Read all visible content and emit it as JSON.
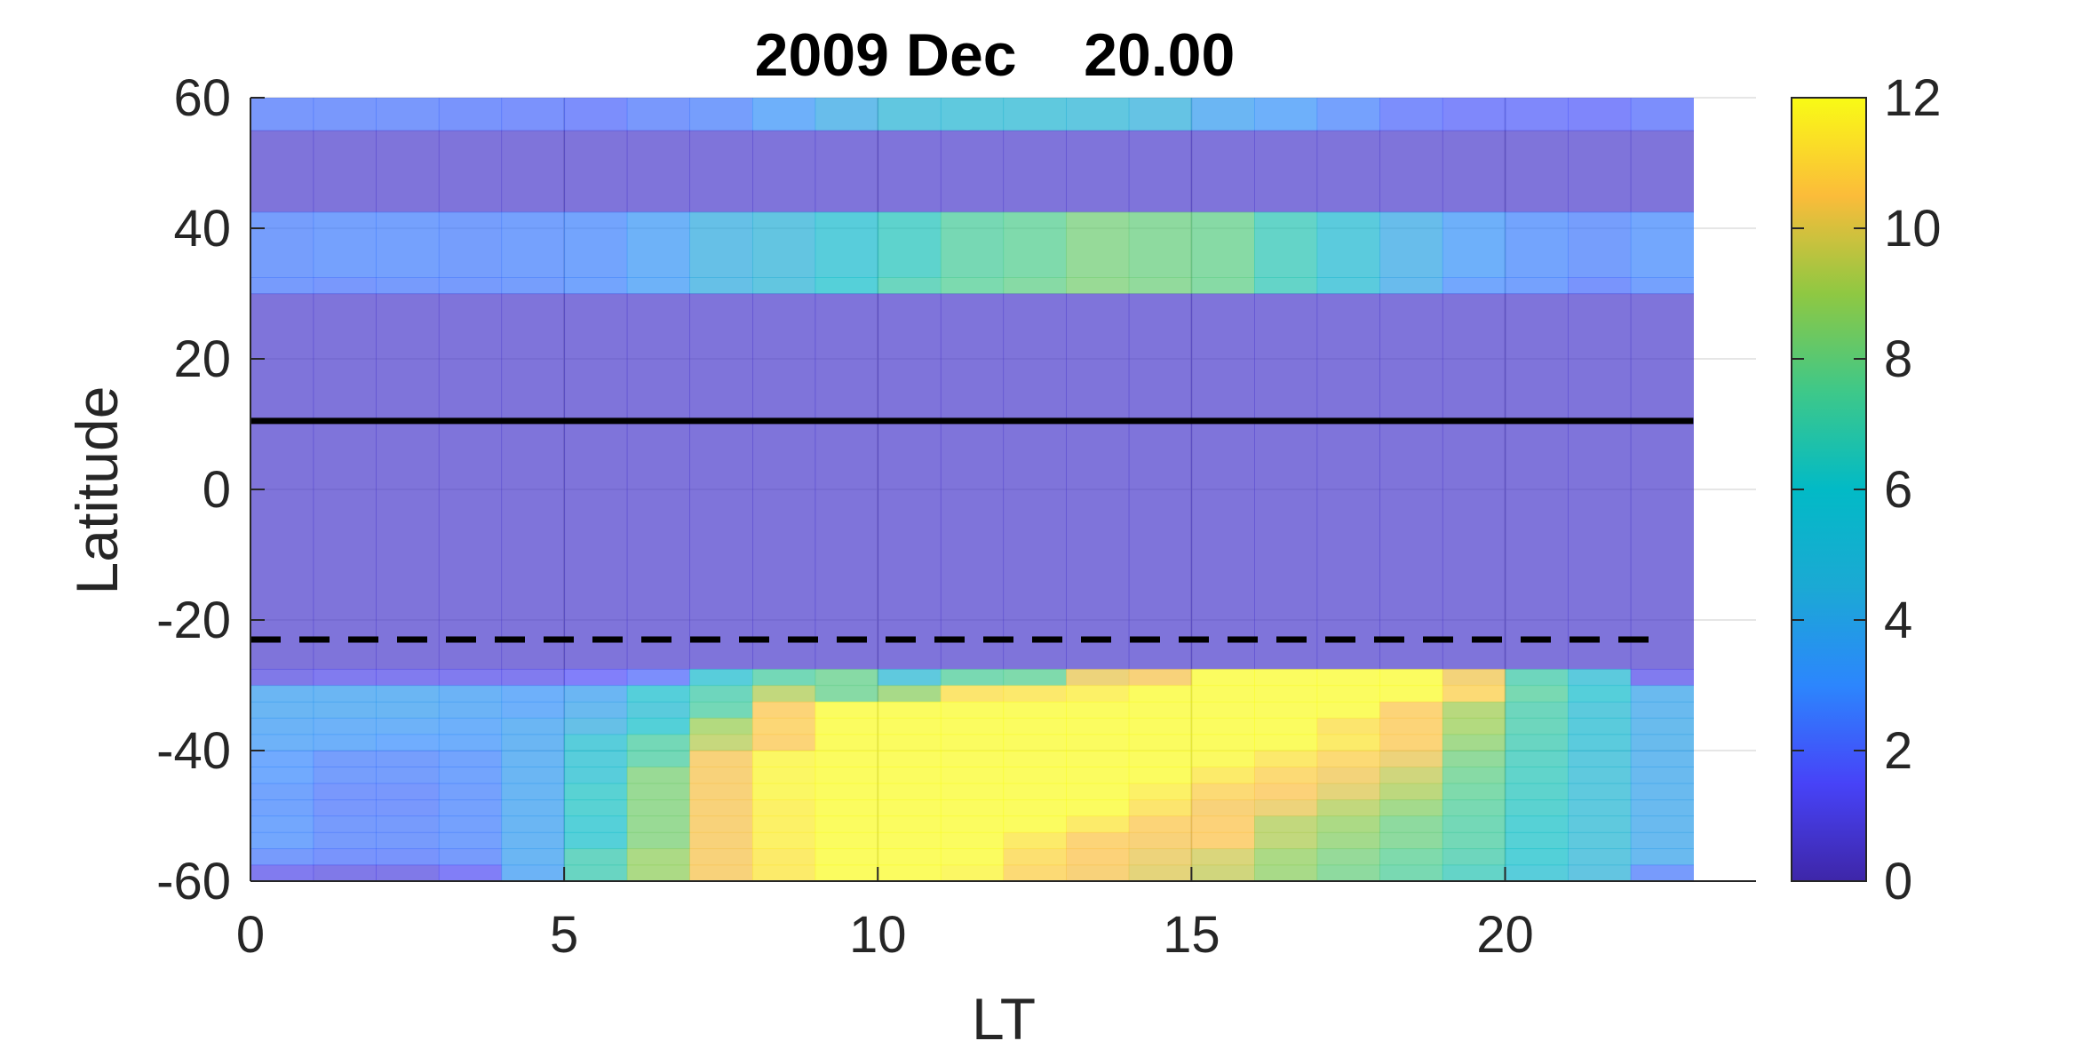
{
  "chart_data": {
    "type": "heatmap",
    "title": "2009 Dec    20.00",
    "xlabel": "LT",
    "ylabel": "Latitude",
    "xlim": [
      0,
      24
    ],
    "ylim": [
      -60,
      60
    ],
    "x_ticks": [
      0,
      5,
      10,
      15,
      20
    ],
    "x_tick_labels": [
      "0",
      "5",
      "10",
      "15",
      "20"
    ],
    "y_ticks": [
      -60,
      -40,
      -20,
      0,
      20,
      40,
      60
    ],
    "y_tick_labels": [
      "-60",
      "-40",
      "-20",
      "0",
      "20",
      "40",
      "60"
    ],
    "grid": true,
    "colorbar": {
      "colormap": "parula",
      "range": [
        0,
        12
      ],
      "ticks": [
        0,
        2,
        4,
        6,
        8,
        10,
        12
      ],
      "tick_labels": [
        "0",
        "2",
        "4",
        "6",
        "8",
        "10",
        "12"
      ]
    },
    "x_centers": [
      0.5,
      1.5,
      2.5,
      3.5,
      4.5,
      5.5,
      6.5,
      7.5,
      8.5,
      9.5,
      10.5,
      11.5,
      12.5,
      13.5,
      14.5,
      15.5,
      16.5,
      17.5,
      18.5,
      19.5,
      20.5,
      21.5,
      22.5
    ],
    "cells": [
      {
        "lat_range": [
          55,
          60
        ],
        "values": [
          2.3,
          2.3,
          2.3,
          2.2,
          2.1,
          2.0,
          2.3,
          2.5,
          3.2,
          4.0,
          4.8,
          5.0,
          5.0,
          4.8,
          4.4,
          3.6,
          3.2,
          2.6,
          2.0,
          1.8,
          1.8,
          1.7,
          2.0
        ]
      },
      {
        "lat_range": [
          42.5,
          55
        ],
        "values": [
          0.6,
          0.6,
          0.6,
          0.6,
          0.6,
          0.6,
          0.6,
          0.6,
          0.6,
          0.6,
          0.6,
          0.6,
          0.6,
          0.6,
          0.6,
          0.6,
          0.6,
          0.6,
          0.6,
          0.6,
          0.6,
          0.6,
          0.6
        ]
      },
      {
        "lat_range": [
          32.5,
          42.5
        ],
        "values": [
          2.5,
          2.6,
          2.6,
          2.5,
          2.6,
          2.7,
          3.3,
          4.2,
          4.6,
          5.6,
          6.4,
          7.3,
          7.6,
          8.2,
          8.0,
          7.8,
          6.6,
          5.3,
          4.0,
          3.2,
          2.7,
          2.5,
          2.8
        ]
      },
      {
        "lat_range": [
          30,
          32.5
        ],
        "values": [
          2.4,
          2.3,
          2.4,
          2.4,
          2.5,
          2.7,
          3.3,
          4.2,
          4.7,
          5.9,
          6.9,
          7.5,
          7.8,
          8.3,
          8.1,
          7.8,
          6.6,
          5.3,
          3.9,
          2.8,
          2.6,
          2.2,
          2.6
        ]
      },
      {
        "lat_range": [
          -27.5,
          30
        ],
        "values": [
          0.6,
          0.6,
          0.6,
          0.6,
          0.6,
          0.6,
          0.6,
          0.6,
          0.6,
          0.6,
          0.6,
          0.6,
          0.6,
          0.6,
          0.6,
          0.6,
          0.6,
          0.6,
          0.6,
          0.6,
          0.6,
          0.6,
          0.6
        ]
      },
      {
        "lat_range": [
          -30,
          -27.5
        ],
        "values": [
          1.0,
          1.2,
          1.2,
          1.2,
          1.2,
          1.5,
          2.0,
          5.6,
          7.2,
          7.8,
          5.0,
          7.4,
          7.6,
          10.2,
          10.4,
          12.0,
          12.0,
          12.0,
          12.0,
          10.3,
          7.0,
          5.2,
          1.2
        ]
      },
      {
        "lat_range": [
          -32.5,
          -30
        ],
        "values": [
          3.6,
          3.6,
          3.6,
          3.4,
          3.2,
          3.6,
          5.8,
          7.0,
          9.3,
          7.8,
          8.7,
          11.2,
          11.3,
          11.6,
          12.0,
          12.0,
          12.0,
          12.0,
          12.0,
          10.8,
          7.4,
          5.8,
          3.8
        ]
      },
      {
        "lat_range": [
          -35,
          -32.5
        ],
        "values": [
          3.6,
          3.6,
          3.6,
          3.4,
          3.2,
          3.8,
          5.4,
          7.2,
          10.6,
          12.0,
          12.0,
          12.0,
          12.0,
          12.0,
          12.0,
          12.0,
          12.0,
          12.0,
          10.6,
          9.1,
          7.0,
          5.2,
          3.8
        ]
      },
      {
        "lat_range": [
          -37.5,
          -35
        ],
        "values": [
          3.4,
          3.3,
          3.3,
          3.2,
          3.6,
          4.2,
          6.0,
          9.0,
          10.7,
          12.0,
          12.0,
          12.0,
          12.0,
          12.0,
          12.0,
          12.0,
          12.0,
          11.2,
          10.6,
          9.0,
          7.0,
          5.4,
          3.9
        ]
      },
      {
        "lat_range": [
          -40,
          -37.5
        ],
        "values": [
          3.3,
          3.2,
          3.0,
          3.1,
          3.6,
          5.6,
          7.2,
          9.4,
          10.6,
          12.0,
          12.0,
          12.0,
          12.0,
          12.0,
          12.0,
          12.0,
          12.0,
          11.4,
          10.6,
          8.6,
          6.8,
          5.3,
          3.9
        ]
      },
      {
        "lat_range": [
          -42.5,
          -40
        ],
        "values": [
          2.9,
          2.5,
          2.5,
          2.7,
          3.6,
          5.6,
          7.2,
          10.4,
          11.8,
          12.0,
          12.0,
          12.0,
          12.0,
          12.0,
          12.0,
          11.9,
          11.3,
          10.8,
          10.2,
          8.1,
          6.6,
          5.1,
          3.8
        ]
      },
      {
        "lat_range": [
          -45,
          -42.5
        ],
        "values": [
          2.9,
          2.5,
          2.5,
          2.7,
          3.6,
          5.6,
          8.3,
          10.4,
          11.8,
          12.0,
          12.0,
          12.0,
          12.0,
          12.0,
          12.0,
          11.4,
          10.8,
          10.3,
          9.6,
          7.8,
          6.5,
          5.0,
          3.8
        ]
      },
      {
        "lat_range": [
          -47.5,
          -45
        ],
        "values": [
          2.7,
          2.3,
          2.3,
          2.6,
          3.6,
          6.2,
          8.3,
          10.4,
          11.8,
          12.0,
          12.0,
          12.0,
          12.0,
          12.0,
          11.6,
          10.8,
          10.5,
          10.0,
          9.2,
          7.6,
          6.4,
          5.0,
          3.8
        ]
      },
      {
        "lat_range": [
          -50,
          -47.5
        ],
        "values": [
          2.7,
          2.3,
          2.3,
          2.6,
          3.6,
          6.2,
          8.3,
          10.4,
          11.6,
          12.0,
          12.0,
          12.0,
          12.0,
          12.0,
          11.2,
          10.4,
          10.2,
          9.3,
          8.6,
          7.4,
          6.3,
          5.0,
          3.8
        ]
      },
      {
        "lat_range": [
          -52.5,
          -50
        ],
        "values": [
          2.8,
          2.4,
          2.4,
          2.6,
          3.6,
          5.9,
          8.3,
          10.4,
          11.6,
          12.0,
          12.0,
          12.0,
          12.0,
          11.4,
          10.6,
          10.5,
          9.3,
          8.8,
          8.0,
          7.2,
          6.1,
          5.0,
          3.8
        ]
      },
      {
        "lat_range": [
          -55,
          -52.5
        ],
        "values": [
          2.8,
          2.4,
          2.4,
          2.6,
          3.6,
          5.9,
          8.3,
          10.4,
          11.6,
          12.0,
          12.0,
          12.0,
          11.4,
          10.6,
          10.4,
          10.5,
          9.3,
          8.6,
          8.0,
          7.2,
          6.1,
          5.0,
          3.8
        ]
      },
      {
        "lat_range": [
          -57.5,
          -55
        ],
        "values": [
          2.4,
          2.2,
          2.2,
          2.4,
          3.6,
          6.8,
          8.8,
          10.4,
          11.4,
          12.0,
          12.0,
          12.0,
          11.0,
          10.5,
          10.2,
          9.8,
          8.8,
          8.2,
          7.6,
          7.0,
          6.0,
          4.8,
          3.8
        ]
      },
      {
        "lat_range": [
          -60,
          -57.5
        ],
        "values": [
          1.2,
          1.0,
          1.0,
          1.4,
          3.4,
          6.8,
          8.8,
          10.4,
          11.4,
          12.0,
          12.0,
          11.8,
          10.8,
          10.4,
          10.0,
          9.6,
          8.7,
          8.0,
          7.4,
          6.6,
          5.6,
          4.6,
          2.4
        ]
      }
    ],
    "lines": [
      {
        "style": "solid",
        "color": "#000000",
        "y": 10.5,
        "x_range": [
          0,
          23
        ]
      },
      {
        "style": "dashed",
        "color": "#000000",
        "y": -23,
        "x_range": [
          0,
          22.5
        ]
      }
    ]
  }
}
